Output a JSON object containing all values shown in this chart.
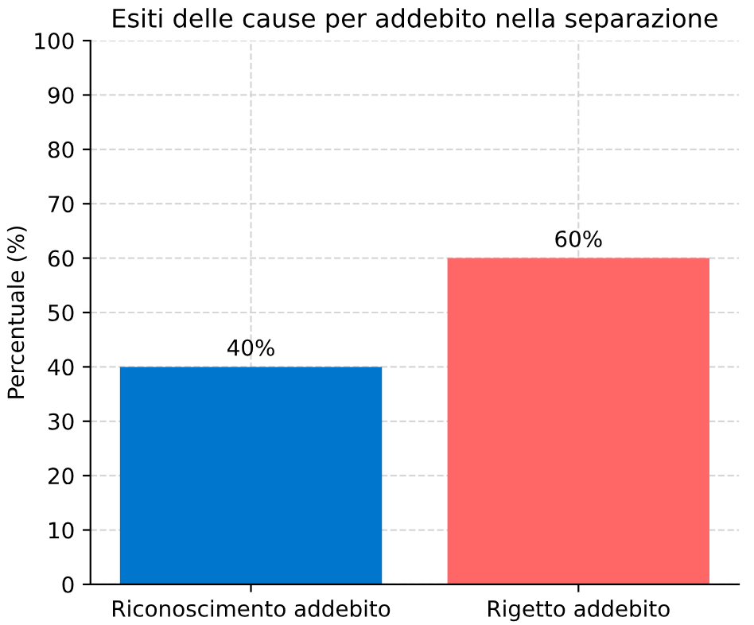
{
  "chart_data": {
    "type": "bar",
    "title": "Esiti delle cause per addebito nella separazione",
    "ylabel": "Percentuale (%)",
    "categories": [
      "Riconoscimento addebito",
      "Rigetto addebito"
    ],
    "values": [
      40,
      60
    ],
    "colors": [
      "#0077cc",
      "#ff6666"
    ],
    "value_labels": [
      "40%",
      "60%"
    ],
    "ylim": [
      0,
      100
    ],
    "yticks": [
      0,
      10,
      20,
      30,
      40,
      50,
      60,
      70,
      80,
      90,
      100
    ],
    "grid": true,
    "line_style": "dashed"
  }
}
